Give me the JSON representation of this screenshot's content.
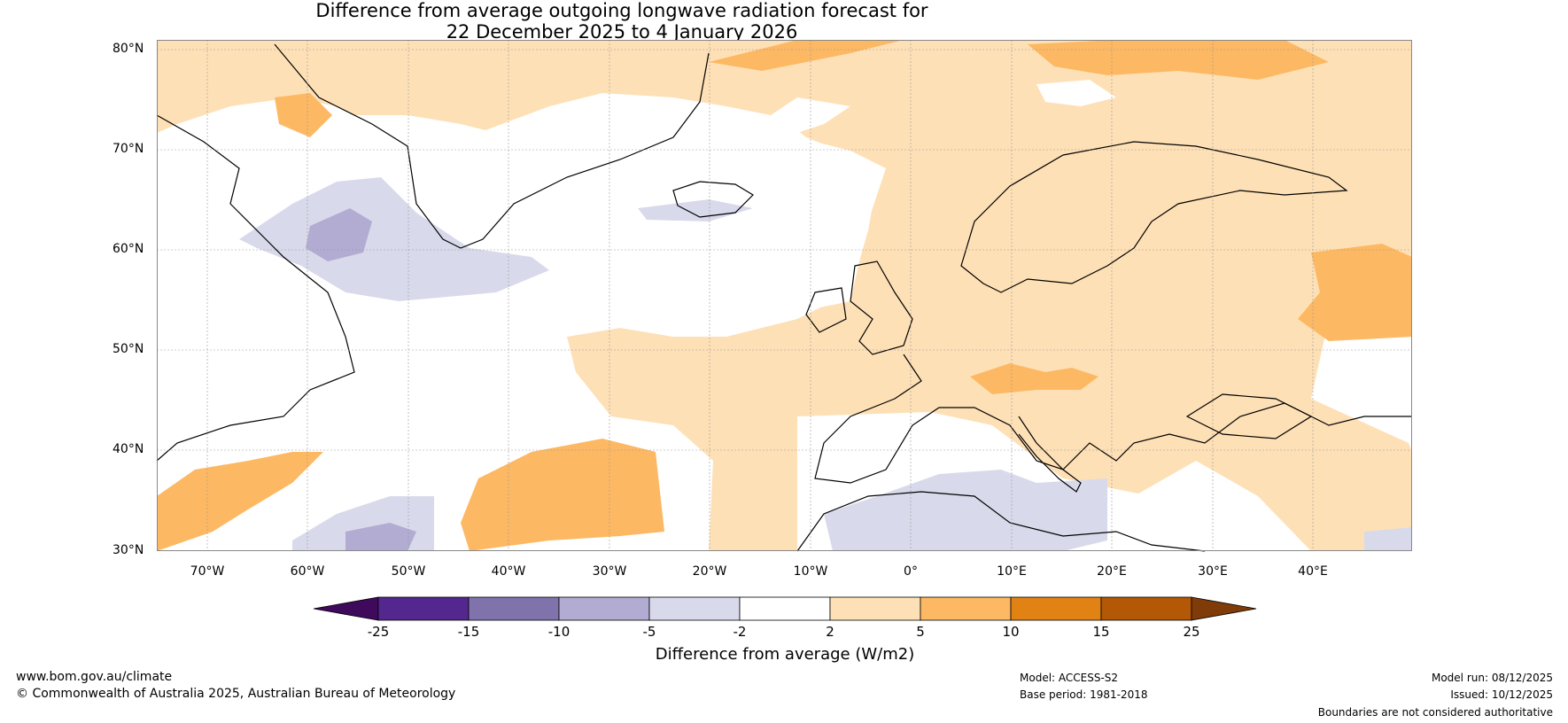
{
  "title_line1": "Difference from average outgoing longwave radiation forecast for",
  "title_line2": "22 December 2025 to 4 January 2026",
  "map": {
    "lat_labels": [
      "80°N",
      "70°N",
      "60°N",
      "50°N",
      "40°N",
      "30°N"
    ],
    "lon_labels": [
      "70°W",
      "60°W",
      "50°W",
      "40°W",
      "30°W",
      "20°W",
      "10°W",
      "0°",
      "10°E",
      "20°E",
      "30°E",
      "40°E"
    ]
  },
  "legend": {
    "title": "Difference from average (W/m2)",
    "ticks": [
      "-25",
      "-15",
      "-10",
      "-5",
      "-2",
      "2",
      "5",
      "10",
      "15",
      "25"
    ],
    "colors": [
      "#3f0a5c",
      "#54278f",
      "#8073ac",
      "#b2abd2",
      "#d8daeb",
      "#ffffff",
      "#fee0b6",
      "#fdb863",
      "#e08214",
      "#b35806",
      "#7f3b08"
    ]
  },
  "footer": {
    "website": "www.bom.gov.au/climate",
    "copyright": "© Commonwealth of Australia 2025, Australian Bureau of Meteorology",
    "model": "Model: ACCESS-S2",
    "base_period": "Base period: 1981-2018",
    "model_run": "Model run: 08/12/2025",
    "issued": "Issued: 10/12/2025",
    "disclaimer": "Boundaries are not considered authoritative"
  }
}
